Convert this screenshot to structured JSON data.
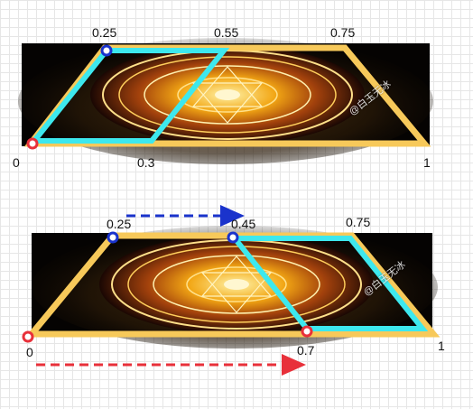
{
  "top_panel": {
    "labels": {
      "t1": "0.25",
      "t2": "0.55",
      "t3": "0.75",
      "b0": "0",
      "b1": "0.3",
      "b2": "1"
    },
    "watermark": "@白玉无冰"
  },
  "bottom_panel": {
    "labels": {
      "t1": "0.25",
      "t2": "0.45",
      "t3": "0.75",
      "b0": "0",
      "b1": "0.7",
      "b2": "1"
    },
    "watermark": "@白玉无冰"
  },
  "colors": {
    "trapezoid_border": "#f7c95a",
    "highlight": "#3de8ee",
    "blue_arrow": "#1a33cc",
    "red_arrow": "#e8303a",
    "blue_marker": "#1a33cc",
    "red_marker": "#e8303a"
  }
}
